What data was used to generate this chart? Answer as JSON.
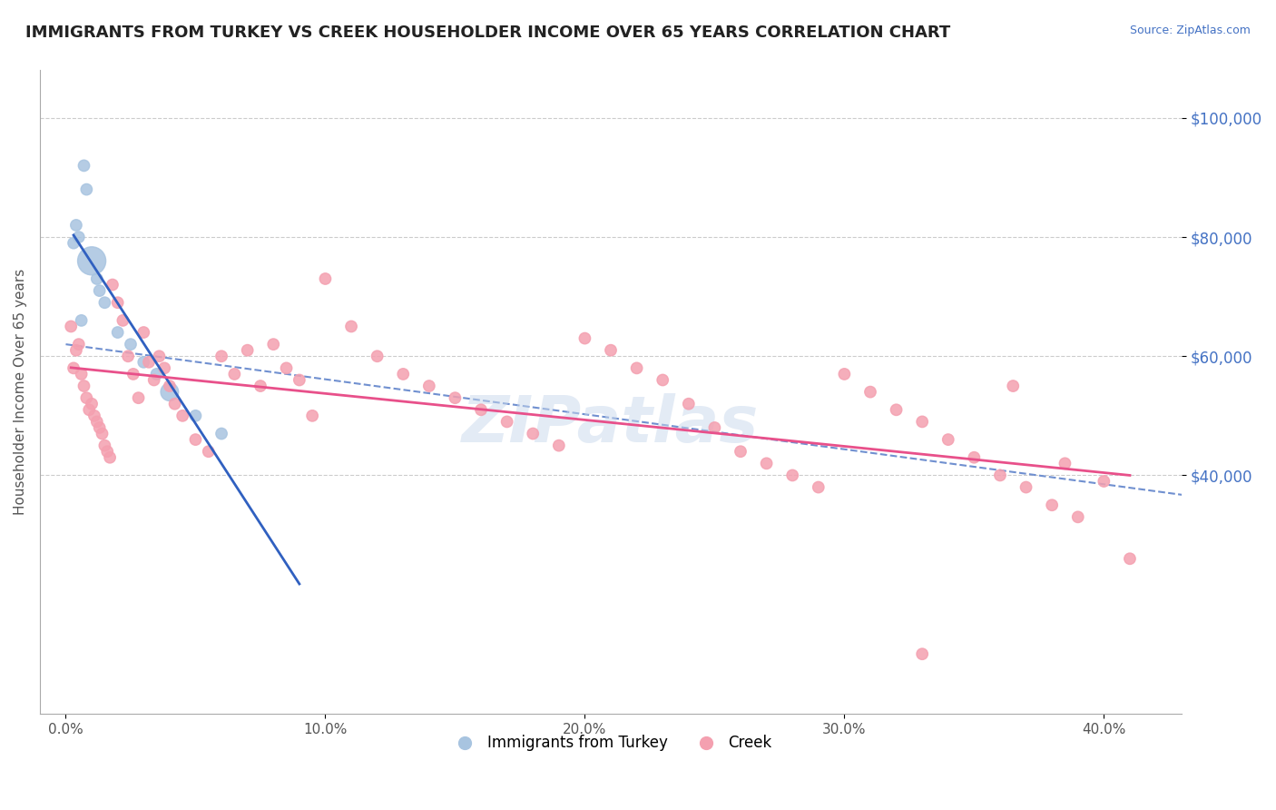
{
  "title": "IMMIGRANTS FROM TURKEY VS CREEK HOUSEHOLDER INCOME OVER 65 YEARS CORRELATION CHART",
  "source": "Source: ZipAtlas.com",
  "ylabel": "Householder Income Over 65 years",
  "xlabel_ticks": [
    "0.0%",
    "10.0%",
    "20.0%",
    "30.0%",
    "40.0%"
  ],
  "xlabel_values": [
    0.0,
    10.0,
    20.0,
    30.0,
    40.0
  ],
  "ytick_labels": [
    "$40,000",
    "$60,000",
    "$80,000",
    "$100,000"
  ],
  "ytick_values": [
    40000,
    60000,
    80000,
    100000
  ],
  "ylim": [
    0,
    108000
  ],
  "xlim": [
    -1.0,
    43.0
  ],
  "watermark": "ZIPatlas",
  "blue_color": "#a8c4e0",
  "pink_color": "#f4a0b0",
  "blue_line_color": "#3060c0",
  "pink_line_color": "#e8508a",
  "dashed_line_color": "#7090d0",
  "blue_scatter": [
    [
      0.3,
      79000
    ],
    [
      0.4,
      82000
    ],
    [
      0.5,
      80000
    ],
    [
      0.6,
      66000
    ],
    [
      0.7,
      92000
    ],
    [
      0.8,
      88000
    ],
    [
      1.0,
      76000
    ],
    [
      1.2,
      73000
    ],
    [
      1.3,
      71000
    ],
    [
      1.5,
      69000
    ],
    [
      2.0,
      64000
    ],
    [
      2.5,
      62000
    ],
    [
      3.0,
      59000
    ],
    [
      3.5,
      57000
    ],
    [
      4.0,
      54000
    ],
    [
      5.0,
      50000
    ],
    [
      6.0,
      47000
    ]
  ],
  "blue_sizes": [
    80,
    80,
    80,
    80,
    80,
    80,
    500,
    80,
    80,
    80,
    80,
    80,
    80,
    80,
    200,
    80,
    80
  ],
  "pink_scatter": [
    [
      0.2,
      65000
    ],
    [
      0.3,
      58000
    ],
    [
      0.4,
      61000
    ],
    [
      0.5,
      62000
    ],
    [
      0.6,
      57000
    ],
    [
      0.7,
      55000
    ],
    [
      0.8,
      53000
    ],
    [
      0.9,
      51000
    ],
    [
      1.0,
      52000
    ],
    [
      1.1,
      50000
    ],
    [
      1.2,
      49000
    ],
    [
      1.3,
      48000
    ],
    [
      1.4,
      47000
    ],
    [
      1.5,
      45000
    ],
    [
      1.6,
      44000
    ],
    [
      1.7,
      43000
    ],
    [
      1.8,
      72000
    ],
    [
      2.0,
      69000
    ],
    [
      2.2,
      66000
    ],
    [
      2.4,
      60000
    ],
    [
      2.6,
      57000
    ],
    [
      2.8,
      53000
    ],
    [
      3.0,
      64000
    ],
    [
      3.2,
      59000
    ],
    [
      3.4,
      56000
    ],
    [
      3.6,
      60000
    ],
    [
      3.8,
      58000
    ],
    [
      4.0,
      55000
    ],
    [
      4.2,
      52000
    ],
    [
      4.5,
      50000
    ],
    [
      5.0,
      46000
    ],
    [
      5.5,
      44000
    ],
    [
      6.0,
      60000
    ],
    [
      6.5,
      57000
    ],
    [
      7.0,
      61000
    ],
    [
      7.5,
      55000
    ],
    [
      8.0,
      62000
    ],
    [
      8.5,
      58000
    ],
    [
      9.0,
      56000
    ],
    [
      9.5,
      50000
    ],
    [
      10.0,
      73000
    ],
    [
      11.0,
      65000
    ],
    [
      12.0,
      60000
    ],
    [
      13.0,
      57000
    ],
    [
      14.0,
      55000
    ],
    [
      15.0,
      53000
    ],
    [
      16.0,
      51000
    ],
    [
      17.0,
      49000
    ],
    [
      18.0,
      47000
    ],
    [
      19.0,
      45000
    ],
    [
      20.0,
      63000
    ],
    [
      21.0,
      61000
    ],
    [
      22.0,
      58000
    ],
    [
      23.0,
      56000
    ],
    [
      24.0,
      52000
    ],
    [
      25.0,
      48000
    ],
    [
      26.0,
      44000
    ],
    [
      27.0,
      42000
    ],
    [
      28.0,
      40000
    ],
    [
      29.0,
      38000
    ],
    [
      30.0,
      57000
    ],
    [
      31.0,
      54000
    ],
    [
      32.0,
      51000
    ],
    [
      33.0,
      49000
    ],
    [
      34.0,
      46000
    ],
    [
      35.0,
      43000
    ],
    [
      36.0,
      40000
    ],
    [
      37.0,
      38000
    ],
    [
      38.0,
      35000
    ],
    [
      39.0,
      33000
    ],
    [
      36.5,
      55000
    ],
    [
      38.5,
      42000
    ],
    [
      40.0,
      39000
    ],
    [
      41.0,
      26000
    ],
    [
      33.0,
      10000
    ]
  ],
  "pink_sizes": [
    80,
    80,
    80,
    80,
    80,
    80,
    80,
    80,
    80,
    80,
    80,
    80,
    80,
    80,
    80,
    80,
    80,
    80,
    80,
    80,
    80,
    80,
    80,
    80,
    80,
    80,
    80,
    80,
    80,
    80,
    80,
    80,
    80,
    80,
    80,
    80,
    80,
    80,
    80,
    80,
    80,
    80,
    80,
    80,
    80,
    80,
    80,
    80,
    80,
    80,
    80,
    80,
    80,
    80,
    80,
    80,
    80,
    80,
    80,
    80,
    80,
    80,
    80,
    80,
    80,
    80,
    80,
    80,
    80,
    80,
    80,
    80,
    80,
    80,
    80
  ]
}
